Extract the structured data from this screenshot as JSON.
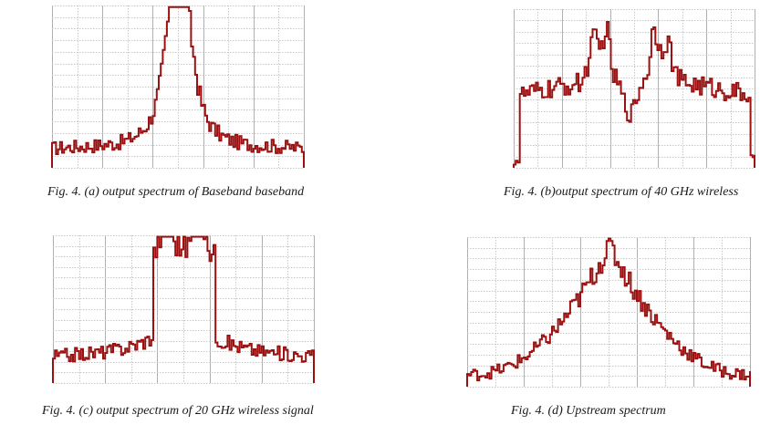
{
  "figure": {
    "trace_color": "#9b1010",
    "grid_color": "#c8c8c8",
    "panels": [
      {
        "id": "a",
        "caption": "Fig. 4. (a) output spectrum of Baseband baseband",
        "shape": "single-peak-narrow",
        "floor": 0.12,
        "peak": 0.97
      },
      {
        "id": "b",
        "caption": "Fig. 4. (b)output spectrum of 40 GHz wireless",
        "shape": "wide-plateau",
        "floor": 0.08,
        "peak": 0.95
      },
      {
        "id": "c",
        "caption": "Fig. 4. (c) output spectrum of 20 GHz wireless signal",
        "shape": "double-peak",
        "floor": 0.15,
        "peak": 0.93
      },
      {
        "id": "d",
        "caption": "Fig. 4. (d) Upstream spectrum",
        "shape": "triangular",
        "floor": 0.08,
        "peak": 0.95
      }
    ]
  }
}
